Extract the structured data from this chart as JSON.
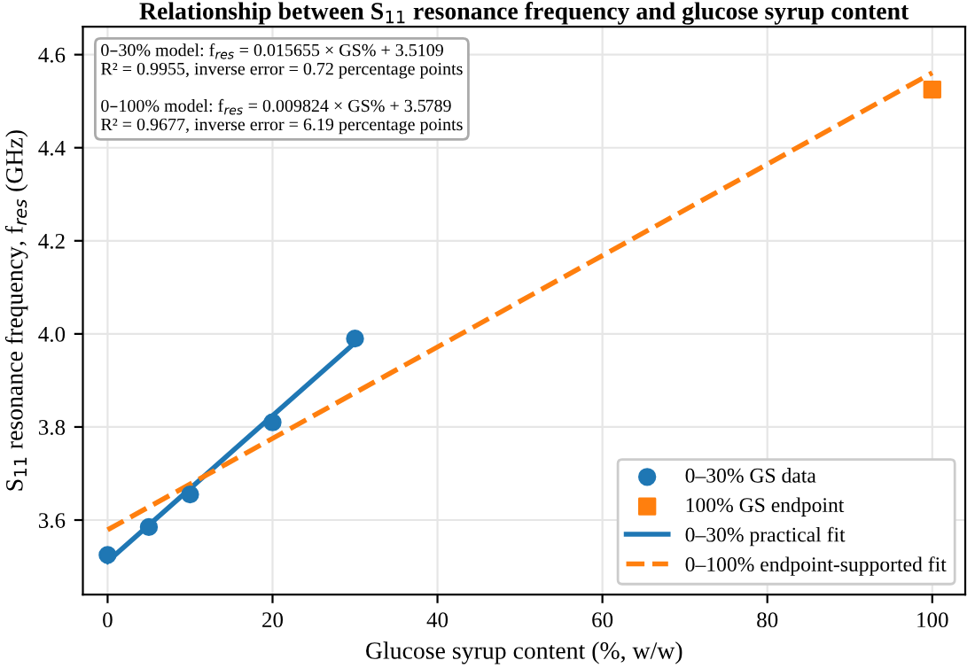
{
  "chart_data": {
    "type": "scatter",
    "title": "Relationship between S$_{11}$ resonance frequency and glucose syrup content",
    "xlabel": "Glucose syrup content (%, w/w)",
    "ylabel": "S$_{11}$ resonance frequency, f$_{res}$ (GHz)",
    "annotations": [
      "0–30% model: f$_{res}$ = 0.015655 × GS% + 3.5109\nR² = 0.9955, inverse error = 0.72 percentage points",
      "0–100% model: f$_{res}$ = 0.009824 × GS% + 3.5789\nR² = 0.9677, inverse error = 6.19 percentage points"
    ],
    "series": [
      {
        "name": "0–30% GS data",
        "color": "#1f77b4",
        "marker": "circle",
        "x": [
          0,
          5,
          10,
          20,
          30
        ],
        "values": [
          3.525,
          3.585,
          3.655,
          3.81,
          3.99
        ]
      },
      {
        "name": "100% GS endpoint",
        "color": "#ff7f0e",
        "marker": "square",
        "x": [
          100
        ],
        "values": [
          4.525
        ]
      },
      {
        "type": "line",
        "name": "0–30% practical fit",
        "color": "#1f77b4",
        "line_style": "solid",
        "x": [
          0,
          30
        ],
        "values": [
          3.511,
          3.981
        ]
      },
      {
        "type": "line",
        "name": "0–100% endpoint-supported fit",
        "color": "#ff7f0e",
        "line_style": "dashed",
        "x": [
          0,
          100
        ],
        "values": [
          3.579,
          4.561
        ]
      }
    ],
    "xlim": [
      -3,
      104
    ],
    "ylim": [
      3.44,
      4.66
    ],
    "xticks": [
      0,
      20,
      40,
      60,
      80,
      100
    ],
    "yticks": [
      {
        "value": 3.6,
        "label": "3.6"
      },
      {
        "value": 3.8,
        "label": "3.8"
      },
      {
        "value": 4.0,
        "label": "4.0"
      },
      {
        "value": 4.2,
        "label": "4.2"
      },
      {
        "value": 4.4,
        "label": "4.4"
      },
      {
        "value": 4.6,
        "label": "4.6"
      }
    ],
    "grid": true,
    "legend": "bottom right"
  }
}
